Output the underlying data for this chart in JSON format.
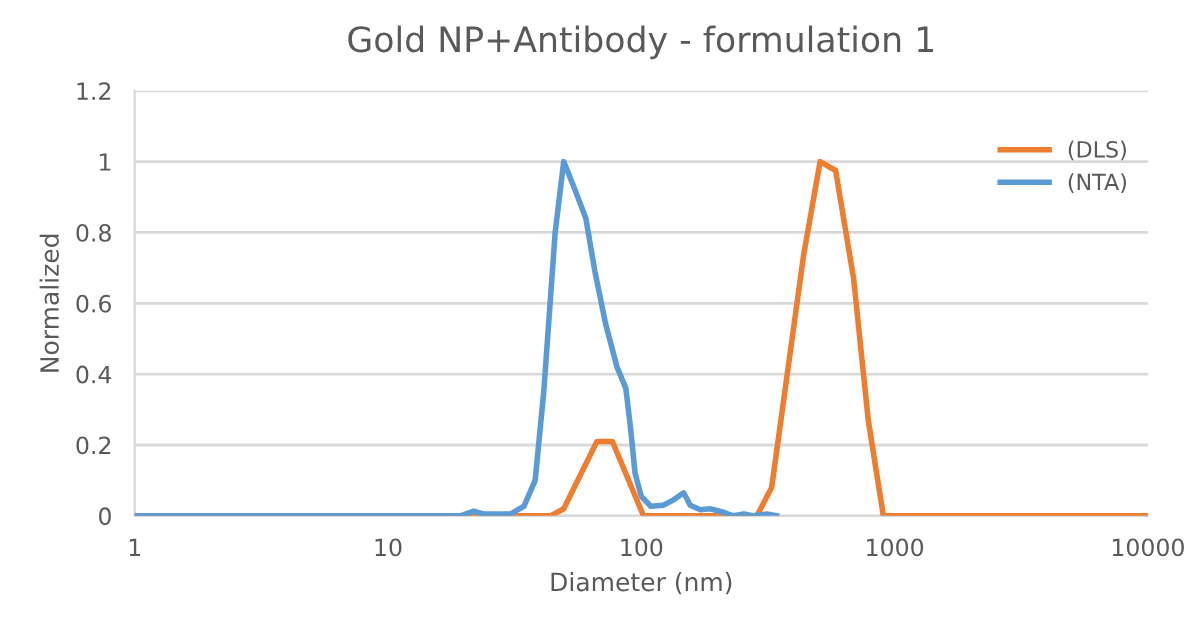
{
  "chart_data": {
    "type": "line",
    "title": "Gold NP+Antibody - formulation 1",
    "xlabel": "Diameter (nm)",
    "ylabel": "Normalized",
    "log": "x",
    "xlim": [
      1,
      10000
    ],
    "xticks": [
      1,
      10,
      100,
      1000,
      10000
    ],
    "ylim": [
      0,
      1.2
    ],
    "yticks": [
      0,
      0.2,
      0.4,
      0.6,
      0.8,
      1,
      1.2
    ],
    "grid": "y",
    "legend": "top right",
    "marker": "none",
    "line_style": "solid",
    "series": [
      {
        "name": "(DLS)",
        "color": "#ed7d31",
        "x": [
          1,
          43.8,
          49.4,
          66.8,
          76.9,
          102,
          286,
          327,
          437,
          508,
          585,
          689,
          787,
          903,
          10000
        ],
        "values": [
          0,
          0,
          0.02,
          0.21,
          0.21,
          0,
          0,
          0.08,
          0.735,
          1.0,
          0.975,
          0.67,
          0.27,
          0,
          0
        ]
      },
      {
        "name": "(NTA)",
        "color": "#5b9bd5",
        "x": [
          1,
          19.3,
          21.8,
          24.0,
          30.4,
          34.4,
          38.1,
          41.2,
          45.7,
          49.4,
          54.1,
          60.4,
          65.6,
          72.4,
          80.2,
          86.9,
          90.6,
          94.5,
          100,
          109,
          122,
          134,
          147,
          156,
          171,
          187,
          211,
          231,
          254,
          276,
          313,
          342
        ],
        "values": [
          0,
          0,
          0.013,
          0.005,
          0.005,
          0.027,
          0.1,
          0.35,
          0.8,
          1.0,
          0.93,
          0.84,
          0.69,
          0.54,
          0.42,
          0.36,
          0.25,
          0.12,
          0.055,
          0.027,
          0.03,
          0.045,
          0.065,
          0.03,
          0.017,
          0.02,
          0.01,
          0,
          0.005,
          0,
          0.005,
          0
        ]
      }
    ]
  }
}
